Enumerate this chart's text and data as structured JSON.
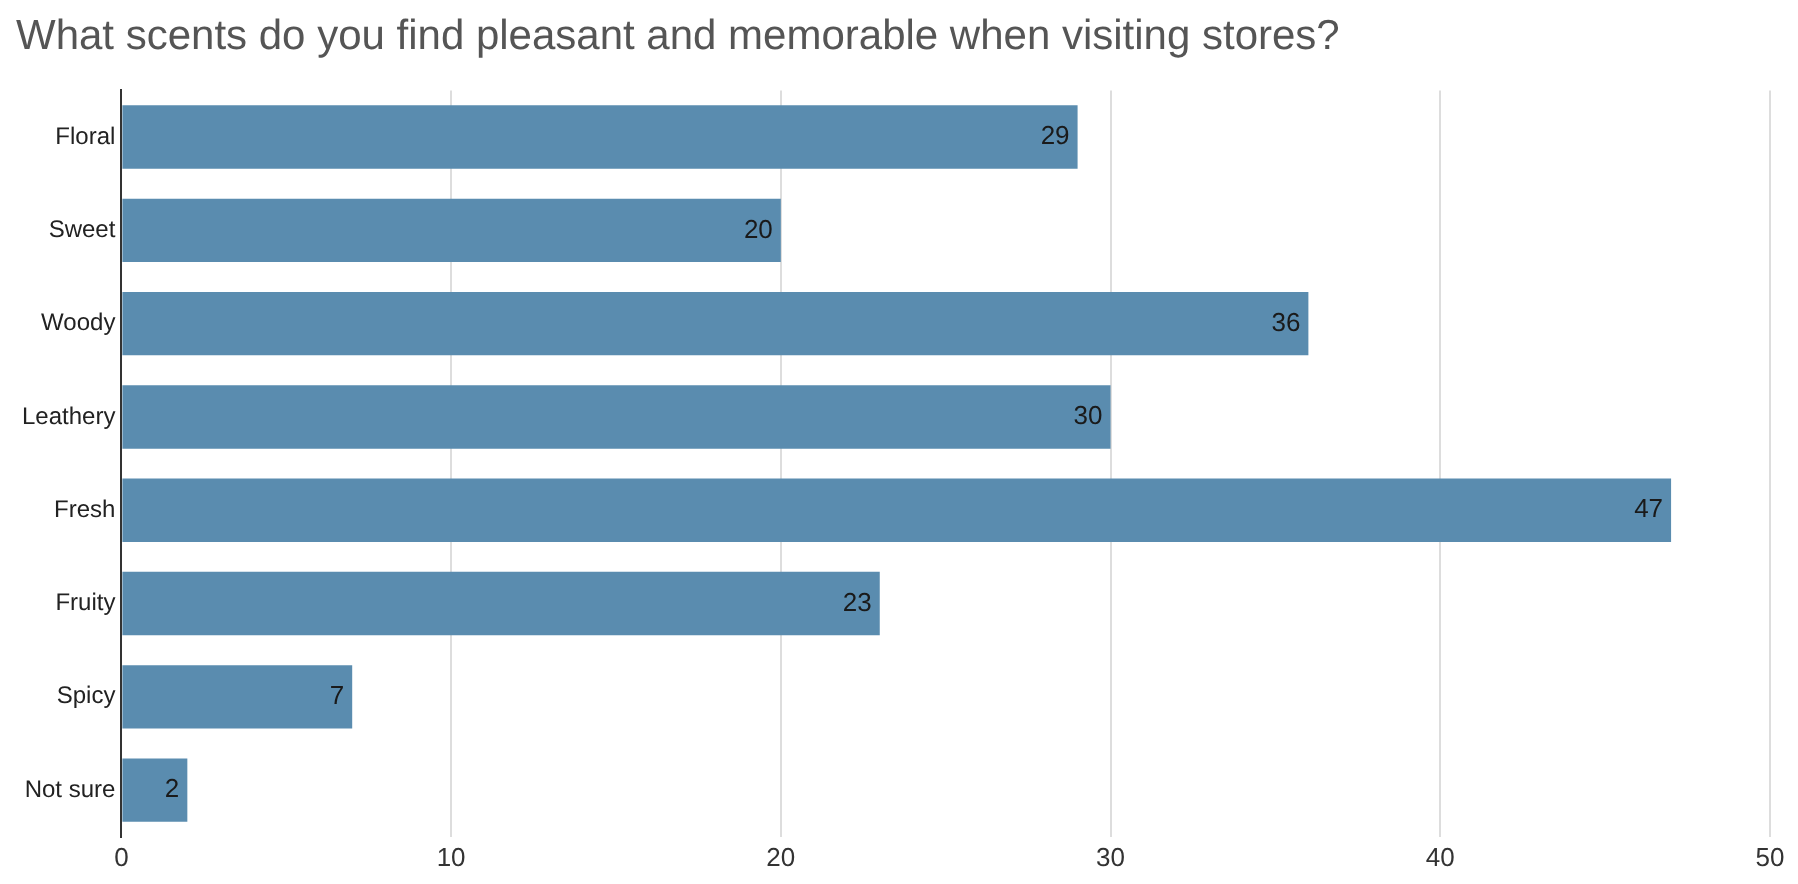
{
  "chart_data": {
    "type": "bar",
    "orientation": "horizontal",
    "title": "What scents do you find pleasant and memorable when visiting stores?",
    "categories": [
      "Floral",
      "Sweet",
      "Woody",
      "Leathery",
      "Fresh",
      "Fruity",
      "Spicy",
      "Not sure"
    ],
    "values": [
      29,
      20,
      36,
      30,
      47,
      23,
      7,
      2
    ],
    "color": "#5a8caf",
    "xlim": [
      0,
      50
    ],
    "xticks": [
      0,
      10,
      20,
      30,
      40,
      50
    ],
    "grid": "x",
    "data_labels": true
  }
}
